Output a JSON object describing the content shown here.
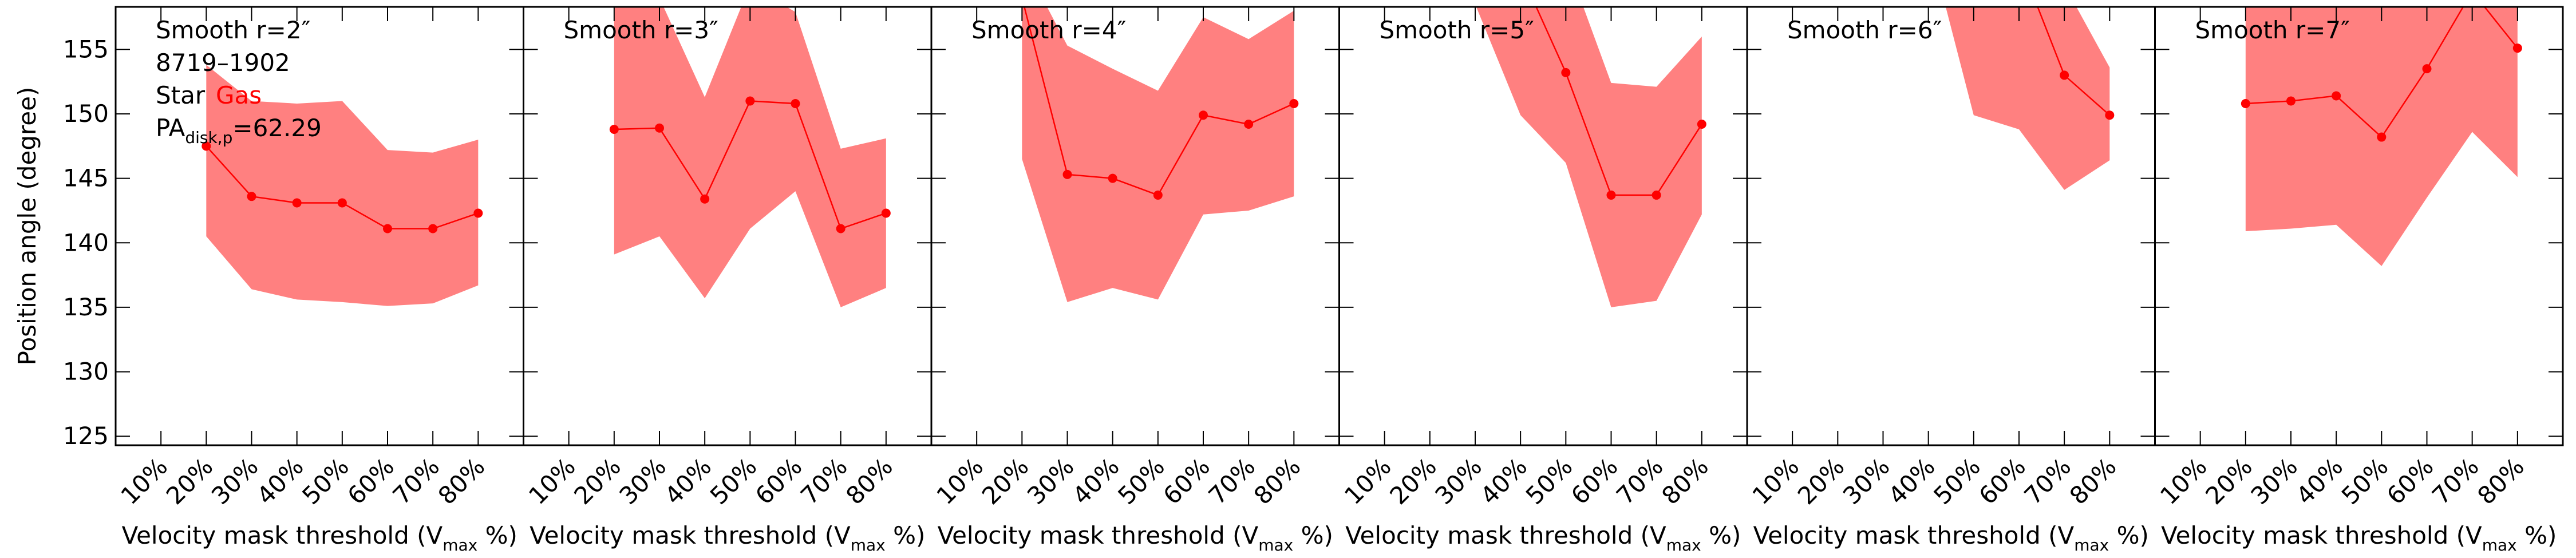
{
  "chart_data": [
    {
      "type": "line",
      "title": "Smooth r=2″",
      "annotations": {
        "id": "8719–1902",
        "star": "Star",
        "gas": "Gas",
        "gas_color": "#ff0000",
        "pa_base": "PA",
        "pa_sub": "disk,p",
        "pa_rest": "=62.29"
      },
      "ylabel": "Position angle (degree)",
      "xlabel": {
        "pre": "Velocity mask threshold (V",
        "sub": "max",
        "post": " %)"
      },
      "x": [
        20,
        30,
        40,
        50,
        60,
        70,
        80
      ],
      "values": [
        147.5,
        143.6,
        143.1,
        143.1,
        141.1,
        141.1,
        142.3
      ],
      "upper": [
        153.8,
        151.0,
        150.8,
        151.0,
        147.2,
        147.0,
        148.0
      ],
      "lower": [
        140.5,
        136.4,
        135.6,
        135.4,
        135.1,
        135.3,
        136.7
      ],
      "color": "#ff0000",
      "band_color": "#ff8080",
      "xlim": [
        0,
        90
      ],
      "ylim": [
        124.3,
        158.3
      ],
      "xticks": [
        {
          "value": 10,
          "label": "10%"
        },
        {
          "value": 20,
          "label": "20%"
        },
        {
          "value": 30,
          "label": "30%"
        },
        {
          "value": 40,
          "label": "40%"
        },
        {
          "value": 50,
          "label": "50%"
        },
        {
          "value": 60,
          "label": "60%"
        },
        {
          "value": 70,
          "label": "70%"
        },
        {
          "value": 80,
          "label": "80%"
        }
      ],
      "yticks": [
        125,
        130,
        135,
        140,
        145,
        150,
        155
      ],
      "ytick_labels": true
    },
    {
      "type": "line",
      "title": "Smooth r=3″",
      "xlabel": {
        "pre": "Velocity mask threshold (V",
        "sub": "max",
        "post": " %)"
      },
      "x": [
        20,
        30,
        40,
        50,
        60,
        70,
        80
      ],
      "values": [
        148.8,
        148.9,
        143.4,
        151.0,
        150.8,
        141.1,
        142.3
      ],
      "upper": [
        160.0,
        159.0,
        151.3,
        160.0,
        157.9,
        147.3,
        148.1
      ],
      "lower": [
        139.1,
        140.5,
        135.7,
        141.1,
        144.0,
        135.0,
        136.5
      ],
      "color": "#ff0000",
      "band_color": "#ff8080",
      "xlim": [
        0,
        90
      ],
      "ylim": [
        124.3,
        158.3
      ],
      "xticks": [
        {
          "value": 10,
          "label": "10%"
        },
        {
          "value": 20,
          "label": "20%"
        },
        {
          "value": 30,
          "label": "30%"
        },
        {
          "value": 40,
          "label": "40%"
        },
        {
          "value": 50,
          "label": "50%"
        },
        {
          "value": 60,
          "label": "60%"
        },
        {
          "value": 70,
          "label": "70%"
        },
        {
          "value": 80,
          "label": "80%"
        }
      ],
      "yticks": [
        125,
        130,
        135,
        140,
        145,
        150,
        155
      ],
      "ytick_labels": false
    },
    {
      "type": "line",
      "title": "Smooth r=4″",
      "xlabel": {
        "pre": "Velocity mask threshold (V",
        "sub": "max",
        "post": " %)"
      },
      "x": [
        20,
        30,
        40,
        50,
        60,
        70,
        80
      ],
      "values": [
        159.0,
        145.3,
        145.0,
        143.7,
        149.9,
        149.2,
        150.8
      ],
      "upper": [
        162.0,
        155.3,
        153.5,
        151.8,
        157.5,
        155.8,
        158.0
      ],
      "lower": [
        146.5,
        135.4,
        136.5,
        135.6,
        142.2,
        142.5,
        143.6
      ],
      "color": "#ff0000",
      "band_color": "#ff8080",
      "xlim": [
        0,
        90
      ],
      "ylim": [
        124.3,
        158.3
      ],
      "xticks": [
        {
          "value": 10,
          "label": "10%"
        },
        {
          "value": 20,
          "label": "20%"
        },
        {
          "value": 30,
          "label": "30%"
        },
        {
          "value": 40,
          "label": "40%"
        },
        {
          "value": 50,
          "label": "50%"
        },
        {
          "value": 60,
          "label": "60%"
        },
        {
          "value": 70,
          "label": "70%"
        },
        {
          "value": 80,
          "label": "80%"
        }
      ],
      "yticks": [
        125,
        130,
        135,
        140,
        145,
        150,
        155
      ],
      "ytick_labels": false
    },
    {
      "type": "line",
      "title": "Smooth r=5″",
      "xlabel": {
        "pre": "Velocity mask threshold (V",
        "sub": "max",
        "post": " %)"
      },
      "x": [
        20,
        30,
        40,
        50,
        60,
        70,
        80
      ],
      "values": [
        null,
        null,
        161.0,
        153.2,
        143.7,
        143.7,
        149.2
      ],
      "upper": [
        null,
        163.0,
        163.0,
        162.0,
        152.4,
        152.1,
        156.0
      ],
      "lower": [
        null,
        158.5,
        149.9,
        146.2,
        135.0,
        135.5,
        142.2
      ],
      "color": "#ff0000",
      "band_color": "#ff8080",
      "xlim": [
        0,
        90
      ],
      "ylim": [
        124.3,
        158.3
      ],
      "xticks": [
        {
          "value": 10,
          "label": "10%"
        },
        {
          "value": 20,
          "label": "20%"
        },
        {
          "value": 30,
          "label": "30%"
        },
        {
          "value": 40,
          "label": "40%"
        },
        {
          "value": 50,
          "label": "50%"
        },
        {
          "value": 60,
          "label": "60%"
        },
        {
          "value": 70,
          "label": "70%"
        },
        {
          "value": 80,
          "label": "80%"
        }
      ],
      "yticks": [
        125,
        130,
        135,
        140,
        145,
        150,
        155
      ],
      "ytick_labels": false
    },
    {
      "type": "line",
      "title": "Smooth r=6″",
      "xlabel": {
        "pre": "Velocity mask threshold (V",
        "sub": "max",
        "post": " %)"
      },
      "x": [
        20,
        30,
        40,
        50,
        60,
        70,
        80
      ],
      "values": [
        null,
        null,
        null,
        null,
        162.0,
        153.0,
        149.9
      ],
      "upper": [
        null,
        null,
        168.0,
        166.0,
        164.0,
        160.0,
        153.6
      ],
      "lower": [
        null,
        null,
        163.5,
        149.9,
        148.8,
        144.1,
        146.4
      ],
      "color": "#ff0000",
      "band_color": "#ff8080",
      "xlim": [
        0,
        90
      ],
      "ylim": [
        124.3,
        158.3
      ],
      "xticks": [
        {
          "value": 10,
          "label": "10%"
        },
        {
          "value": 20,
          "label": "20%"
        },
        {
          "value": 30,
          "label": "30%"
        },
        {
          "value": 40,
          "label": "40%"
        },
        {
          "value": 50,
          "label": "50%"
        },
        {
          "value": 60,
          "label": "60%"
        },
        {
          "value": 70,
          "label": "70%"
        },
        {
          "value": 80,
          "label": "80%"
        }
      ],
      "yticks": [
        125,
        130,
        135,
        140,
        145,
        150,
        155
      ],
      "ytick_labels": false
    },
    {
      "type": "line",
      "title": "Smooth r=7″",
      "xlabel": {
        "pre": "Velocity mask threshold (V",
        "sub": "max",
        "post": " %)"
      },
      "x": [
        20,
        30,
        40,
        50,
        60,
        70,
        80
      ],
      "values": [
        150.8,
        151.0,
        151.4,
        148.2,
        153.5,
        159.5,
        155.1
      ],
      "upper": [
        165.0,
        165.0,
        165.0,
        165.0,
        165.0,
        165.0,
        160.0
      ],
      "lower": [
        140.9,
        141.1,
        141.4,
        138.2,
        143.5,
        148.6,
        145.1
      ],
      "color": "#ff0000",
      "band_color": "#ff8080",
      "xlim": [
        0,
        90
      ],
      "ylim": [
        124.3,
        158.3
      ],
      "xticks": [
        {
          "value": 10,
          "label": "10%"
        },
        {
          "value": 20,
          "label": "20%"
        },
        {
          "value": 30,
          "label": "30%"
        },
        {
          "value": 40,
          "label": "40%"
        },
        {
          "value": 50,
          "label": "50%"
        },
        {
          "value": 60,
          "label": "60%"
        },
        {
          "value": 70,
          "label": "70%"
        },
        {
          "value": 80,
          "label": "80%"
        }
      ],
      "yticks": [
        125,
        130,
        135,
        140,
        145,
        150,
        155
      ],
      "ytick_labels": false
    }
  ]
}
